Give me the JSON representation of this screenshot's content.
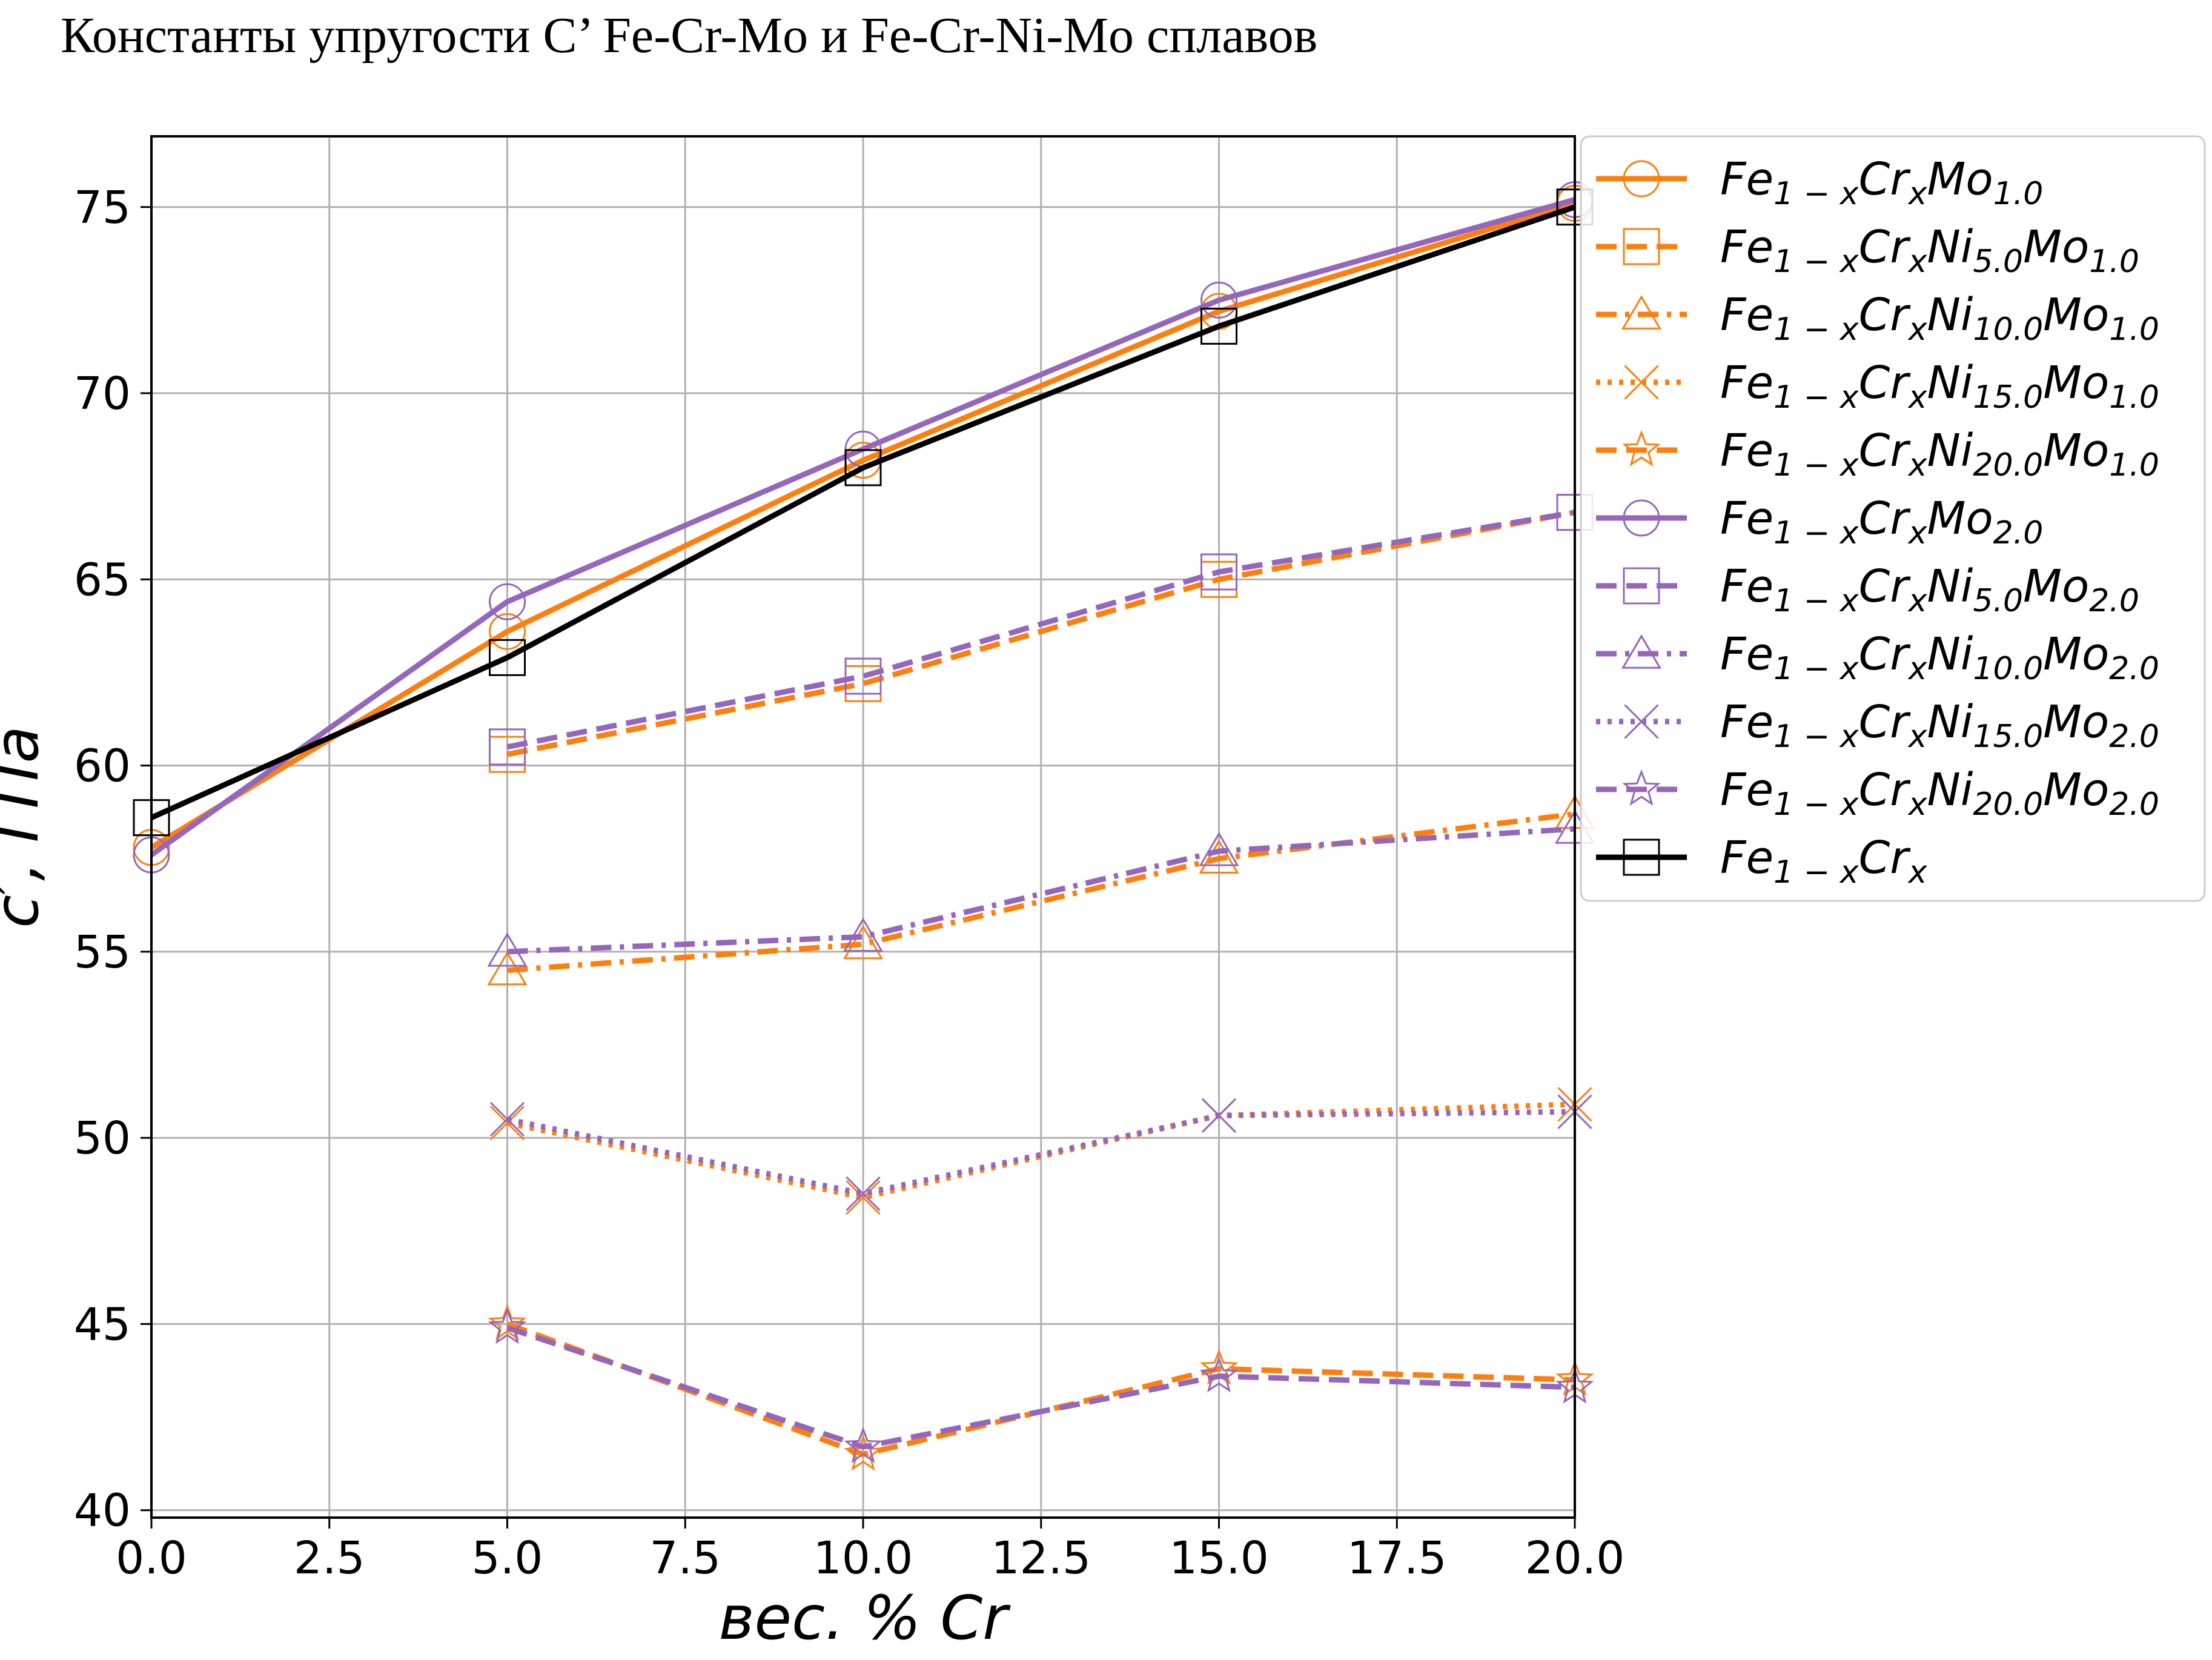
{
  "figure": {
    "title": "Константы упругости C’ Fe-Cr-Mo и Fe-Cr-Ni-Mo сплавов"
  },
  "colors": {
    "orange": "#ff7f0e",
    "purple": "#9467bd",
    "black": "#000000",
    "grid": "#b0b0b0"
  },
  "chart_data": {
    "type": "line",
    "xlabel": "вес. % Cr",
    "ylabel": "c′, ГПа",
    "xlim": [
      0,
      20
    ],
    "ylim": [
      39.8,
      76.9
    ],
    "grid": true,
    "legend_position": "outside-right-top",
    "xticks": [
      0.0,
      2.5,
      5.0,
      7.5,
      10.0,
      12.5,
      15.0,
      17.5,
      20.0
    ],
    "xtick_labels": [
      "0.0",
      "2.5",
      "5.0",
      "7.5",
      "10.0",
      "12.5",
      "15.0",
      "17.5",
      "20.0"
    ],
    "yticks": [
      40,
      45,
      50,
      55,
      60,
      65,
      70,
      75
    ],
    "ytick_labels": [
      "40",
      "45",
      "50",
      "55",
      "60",
      "65",
      "70",
      "75"
    ],
    "series": [
      {
        "name": "Fe1−xCrxMo1.0",
        "legend": {
          "base": "Fe",
          "sub1": "1 − x",
          "mid1": "Cr",
          "sub2": "x",
          "ni": "",
          "subni": "",
          "mo": "Mo",
          "submo": "1.0"
        },
        "color": "#ff7f0e",
        "dash": "solid",
        "marker": "circle",
        "x": [
          0,
          5,
          10,
          15,
          20
        ],
        "y": [
          57.8,
          63.6,
          68.2,
          72.2,
          75.1
        ]
      },
      {
        "name": "Fe1−xCrxNi5.0Mo1.0",
        "legend": {
          "base": "Fe",
          "sub1": "1 − x",
          "mid1": "Cr",
          "sub2": "x",
          "ni": "Ni",
          "subni": "5.0",
          "mo": "Mo",
          "submo": "1.0"
        },
        "color": "#ff7f0e",
        "dash": "dashed",
        "marker": "square",
        "x": [
          5,
          10,
          15,
          20
        ],
        "y": [
          60.3,
          62.2,
          65.0,
          66.8
        ]
      },
      {
        "name": "Fe1−xCrxNi10.0Mo1.0",
        "legend": {
          "base": "Fe",
          "sub1": "1 − x",
          "mid1": "Cr",
          "sub2": "x",
          "ni": "Ni",
          "subni": "10.0",
          "mo": "Mo",
          "submo": "1.0"
        },
        "color": "#ff7f0e",
        "dash": "dashdot",
        "marker": "triangle",
        "x": [
          5,
          10,
          15,
          20
        ],
        "y": [
          54.5,
          55.2,
          57.5,
          58.7
        ]
      },
      {
        "name": "Fe1−xCrxNi15.0Mo1.0",
        "legend": {
          "base": "Fe",
          "sub1": "1 − x",
          "mid1": "Cr",
          "sub2": "x",
          "ni": "Ni",
          "subni": "15.0",
          "mo": "Mo",
          "submo": "1.0"
        },
        "color": "#ff7f0e",
        "dash": "dotted",
        "marker": "x",
        "x": [
          5,
          10,
          15,
          20
        ],
        "y": [
          50.4,
          48.4,
          50.6,
          50.9
        ]
      },
      {
        "name": "Fe1−xCrxNi20.0Mo1.0",
        "legend": {
          "base": "Fe",
          "sub1": "1 − x",
          "mid1": "Cr",
          "sub2": "x",
          "ni": "Ni",
          "subni": "20.0",
          "mo": "Mo",
          "submo": "1.0"
        },
        "color": "#ff7f0e",
        "dash": "dashed",
        "marker": "star",
        "x": [
          5,
          10,
          15,
          20
        ],
        "y": [
          45.0,
          41.5,
          43.8,
          43.5
        ]
      },
      {
        "name": "Fe1−xCrxMo2.0",
        "legend": {
          "base": "Fe",
          "sub1": "1 − x",
          "mid1": "Cr",
          "sub2": "x",
          "ni": "",
          "subni": "",
          "mo": "Mo",
          "submo": "2.0"
        },
        "color": "#9467bd",
        "dash": "solid",
        "marker": "circle",
        "x": [
          0,
          5,
          10,
          15,
          20
        ],
        "y": [
          57.6,
          64.4,
          68.5,
          72.5,
          75.2
        ]
      },
      {
        "name": "Fe1−xCrxNi5.0Mo2.0",
        "legend": {
          "base": "Fe",
          "sub1": "1 − x",
          "mid1": "Cr",
          "sub2": "x",
          "ni": "Ni",
          "subni": "5.0",
          "mo": "Mo",
          "submo": "2.0"
        },
        "color": "#9467bd",
        "dash": "dashed",
        "marker": "square",
        "x": [
          5,
          10,
          15,
          20
        ],
        "y": [
          60.5,
          62.4,
          65.2,
          66.8
        ]
      },
      {
        "name": "Fe1−xCrxNi10.0Mo2.0",
        "legend": {
          "base": "Fe",
          "sub1": "1 − x",
          "mid1": "Cr",
          "sub2": "x",
          "ni": "Ni",
          "subni": "10.0",
          "mo": "Mo",
          "submo": "2.0"
        },
        "color": "#9467bd",
        "dash": "dashdot",
        "marker": "triangle",
        "x": [
          5,
          10,
          15,
          20
        ],
        "y": [
          55.0,
          55.4,
          57.7,
          58.3
        ]
      },
      {
        "name": "Fe1−xCrxNi15.0Mo2.0",
        "legend": {
          "base": "Fe",
          "sub1": "1 − x",
          "mid1": "Cr",
          "sub2": "x",
          "ni": "Ni",
          "subni": "15.0",
          "mo": "Mo",
          "submo": "2.0"
        },
        "color": "#9467bd",
        "dash": "dotted",
        "marker": "x",
        "x": [
          5,
          10,
          15,
          20
        ],
        "y": [
          50.5,
          48.5,
          50.6,
          50.7
        ]
      },
      {
        "name": "Fe1−xCrxNi20.0Mo2.0",
        "legend": {
          "base": "Fe",
          "sub1": "1 − x",
          "mid1": "Cr",
          "sub2": "x",
          "ni": "Ni",
          "subni": "20.0",
          "mo": "Mo",
          "submo": "2.0"
        },
        "color": "#9467bd",
        "dash": "dashed",
        "marker": "star",
        "x": [
          5,
          10,
          15,
          20
        ],
        "y": [
          44.9,
          41.7,
          43.6,
          43.3
        ]
      },
      {
        "name": "Fe1−xCrx",
        "legend": {
          "base": "Fe",
          "sub1": "1 − x",
          "mid1": "Cr",
          "sub2": "x",
          "ni": "",
          "subni": "",
          "mo": "",
          "submo": ""
        },
        "color": "#000000",
        "dash": "solid",
        "marker": "square",
        "x": [
          0,
          5,
          10,
          15,
          20
        ],
        "y": [
          58.6,
          62.9,
          68.0,
          71.8,
          75.0
        ]
      }
    ]
  }
}
